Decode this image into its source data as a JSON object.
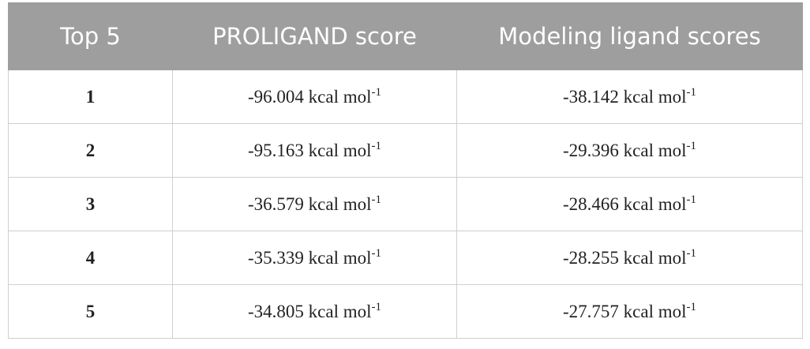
{
  "table": {
    "header": [
      "Top 5",
      "PROLIGAND score",
      "Modeling ligand scores"
    ],
    "rows": [
      [
        "1",
        {
          "text": "-96.004 kcal mol",
          "sup": "-1"
        },
        {
          "text": "-38.142 kcal mol",
          "sup": "-1"
        }
      ],
      [
        "2",
        {
          "text": "-95.163 kcal mol",
          "sup": "-1"
        },
        {
          "text": "-29.396 kcal mol",
          "sup": "-1"
        }
      ],
      [
        "3",
        {
          "text": "-36.579 kcal mol",
          "sup": "-1"
        },
        {
          "text": "-28.466 kcal mol",
          "sup": "-1"
        }
      ],
      [
        "4",
        {
          "text": "-35.339 kcal mol",
          "sup": "-1"
        },
        {
          "text": "-28.255 kcal mol",
          "sup": "-1"
        }
      ],
      [
        "5",
        {
          "text": "-34.805 kcal mol",
          "sup": "-1"
        },
        {
          "text": "-27.757 kcal mol",
          "sup": "-1"
        }
      ]
    ]
  }
}
